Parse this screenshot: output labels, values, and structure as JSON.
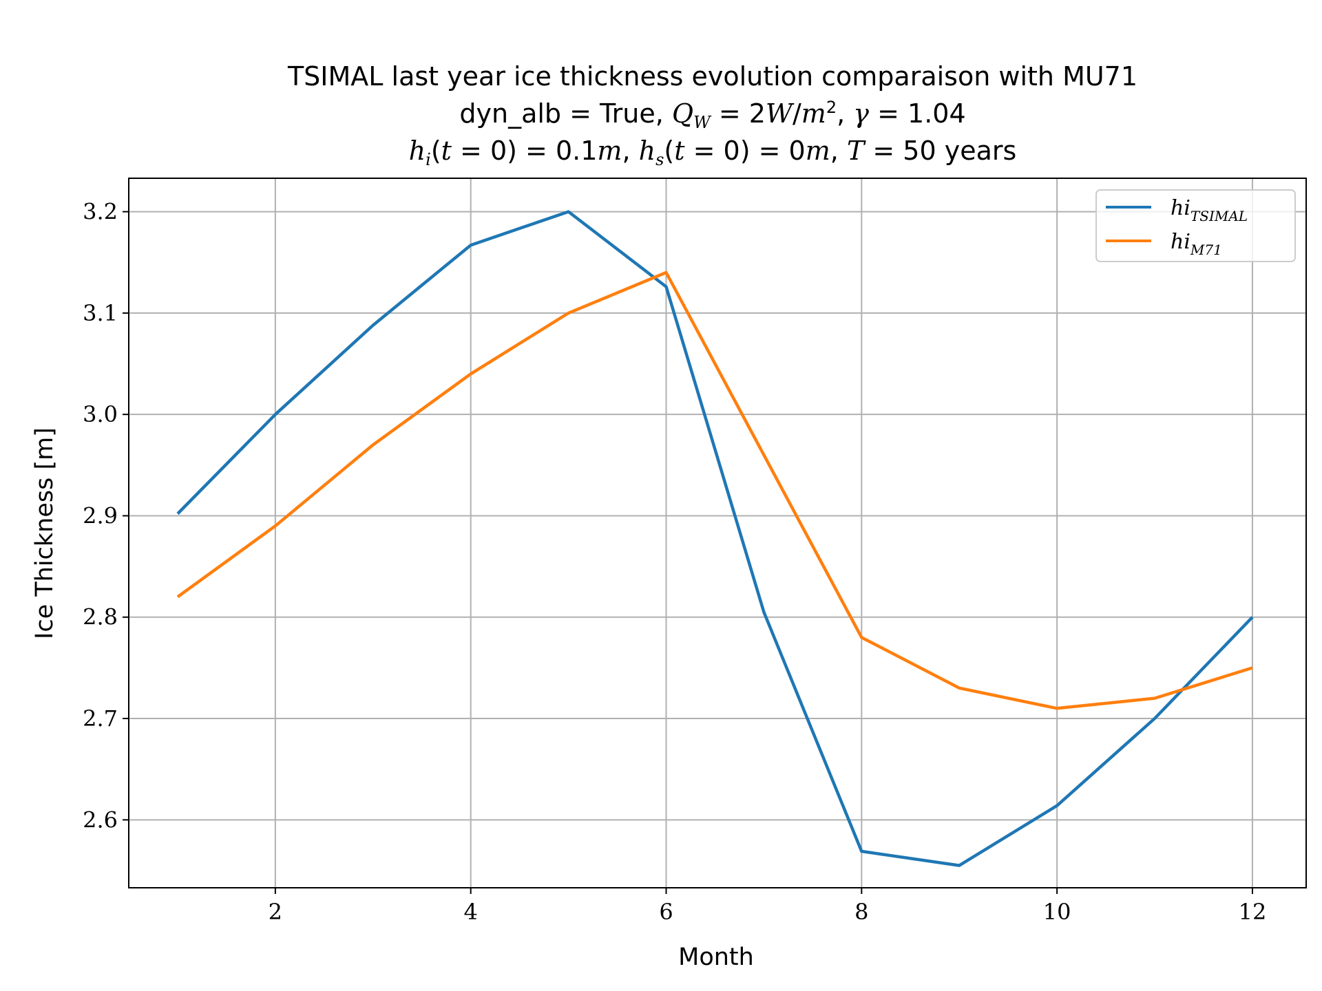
{
  "chart_data": {
    "type": "line",
    "title": {
      "line1": "TSIMAL last year ice thickness evolution comparaison with MU71",
      "line2": "dyn_alb = True, Q_W = 2W/m², γ = 1.04",
      "line3": "h_i(t = 0) = 0.1m, h_s(t = 0) = 0m, T = 50 years"
    },
    "xlabel": "Month",
    "ylabel": "Ice Thickness [m]",
    "xlim": [
      0.5,
      12.55
    ],
    "ylim": [
      2.533,
      3.233
    ],
    "xticks": [
      2,
      4,
      6,
      8,
      10,
      12
    ],
    "xtick_labels": [
      "2",
      "4",
      "6",
      "8",
      "10",
      "12"
    ],
    "yticks": [
      2.6,
      2.7,
      2.8,
      2.9,
      3.0,
      3.1,
      3.2
    ],
    "ytick_labels": [
      "2.6",
      "2.7",
      "2.8",
      "2.9",
      "3.0",
      "3.1",
      "3.2"
    ],
    "grid": true,
    "legend_position": "top-right",
    "x": [
      1,
      2,
      3,
      4,
      5,
      6,
      7,
      8,
      9,
      10,
      11,
      12
    ],
    "series": [
      {
        "name": "hi_TSIMAL",
        "legend_base": "hi",
        "legend_sub": "TSIMAL",
        "color": "#1f77b4",
        "values": [
          2.902,
          3.0,
          3.088,
          3.167,
          3.2,
          3.126,
          2.805,
          2.569,
          2.555,
          2.614,
          2.7,
          2.8
        ]
      },
      {
        "name": "hi_M71",
        "legend_base": "hi",
        "legend_sub": "M71",
        "color": "#ff7f0e",
        "values": [
          2.82,
          2.89,
          2.97,
          3.04,
          3.1,
          3.14,
          2.96,
          2.78,
          2.73,
          2.71,
          2.72,
          2.75
        ]
      }
    ]
  }
}
